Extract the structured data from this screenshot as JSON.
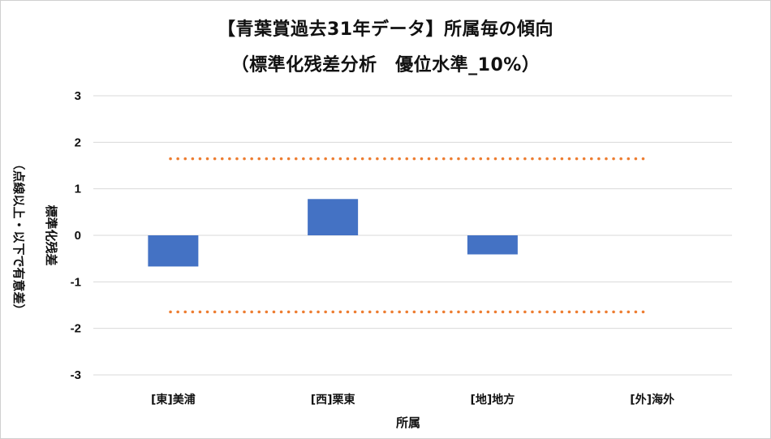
{
  "chart_data": {
    "type": "bar",
    "title": "【青葉賞過去31年データ】所属毎の傾向",
    "subtitle": "（標準化残差分析　優位水準_10%）",
    "xlabel": "所属",
    "ylabel": "標準化残差",
    "ylabel_note": "（点線以上・以下で有意差）",
    "categories": [
      "[東]美浦",
      "[西]栗東",
      "[地]地方",
      "[外]海外"
    ],
    "values": [
      -0.67,
      0.78,
      -0.41,
      0
    ],
    "ylim": [
      -3,
      3
    ],
    "yticks": [
      "3",
      "2",
      "1",
      "0",
      "-1",
      "-2",
      "-3"
    ],
    "threshold_upper": 1.645,
    "threshold_lower": -1.645,
    "grid": true,
    "colors": {
      "bar": "#4472C4",
      "threshold": "#ED7D31",
      "grid": "#d9d9d9"
    }
  }
}
